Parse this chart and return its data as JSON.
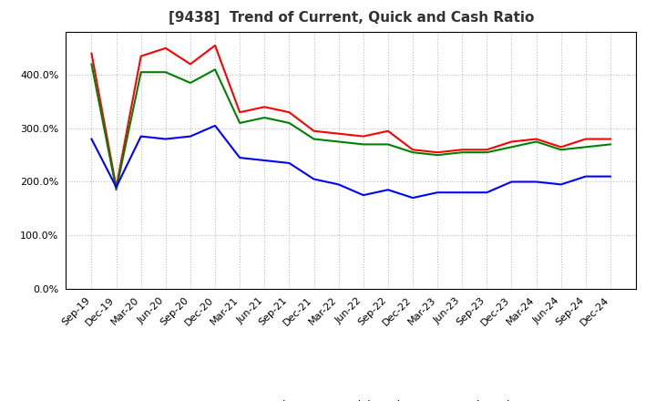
{
  "title": "[9438]  Trend of Current, Quick and Cash Ratio",
  "x_labels": [
    "Sep-19",
    "Dec-19",
    "Mar-20",
    "Jun-20",
    "Sep-20",
    "Dec-20",
    "Mar-21",
    "Jun-21",
    "Sep-21",
    "Dec-21",
    "Mar-22",
    "Jun-22",
    "Sep-22",
    "Dec-22",
    "Mar-23",
    "Jun-23",
    "Sep-23",
    "Dec-23",
    "Mar-24",
    "Jun-24",
    "Sep-24",
    "Dec-24"
  ],
  "current_ratio": [
    4.4,
    1.9,
    4.35,
    4.5,
    4.2,
    4.55,
    3.3,
    3.4,
    3.3,
    2.95,
    2.9,
    2.85,
    2.95,
    2.6,
    2.55,
    2.6,
    2.6,
    2.75,
    2.8,
    2.65,
    2.8,
    2.8
  ],
  "quick_ratio": [
    4.2,
    1.85,
    4.05,
    4.05,
    3.85,
    4.1,
    3.1,
    3.2,
    3.1,
    2.8,
    2.75,
    2.7,
    2.7,
    2.55,
    2.5,
    2.55,
    2.55,
    2.65,
    2.75,
    2.6,
    2.65,
    2.7
  ],
  "cash_ratio": [
    2.8,
    1.9,
    2.85,
    2.8,
    2.85,
    3.05,
    2.45,
    2.4,
    2.35,
    2.05,
    1.95,
    1.75,
    1.85,
    1.7,
    1.8,
    1.8,
    1.8,
    2.0,
    2.0,
    1.95,
    2.1,
    2.1
  ],
  "current_color": "#ff0000",
  "quick_color": "#008000",
  "cash_color": "#0000ff",
  "ylim": [
    0.0,
    4.8
  ],
  "yticks": [
    0.0,
    1.0,
    2.0,
    3.0,
    4.0
  ],
  "ytick_labels": [
    "0.0%",
    "100.0%",
    "200.0%",
    "300.0%",
    "400.0%"
  ],
  "background_color": "#ffffff",
  "grid_color": "#bbbbbb",
  "title_fontsize": 11,
  "legend_fontsize": 9,
  "tick_fontsize": 8
}
